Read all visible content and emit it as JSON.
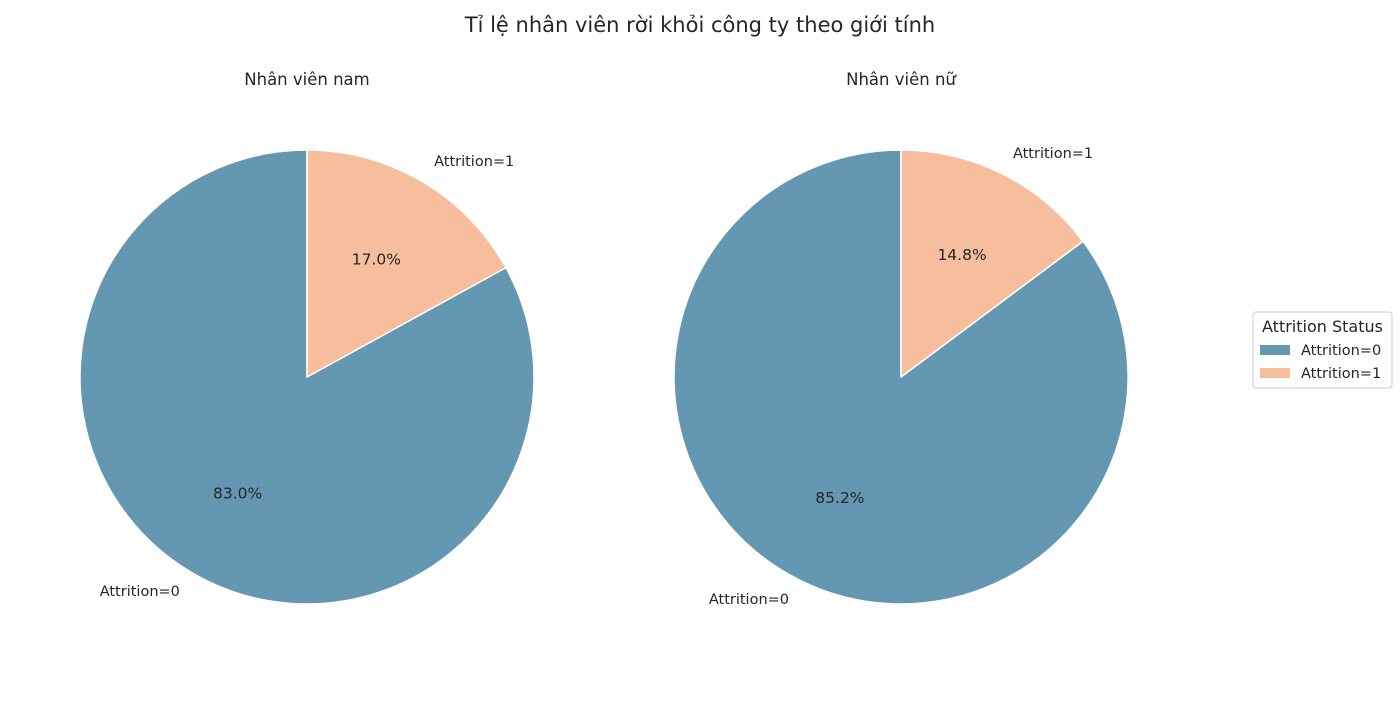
{
  "chart_data": {
    "type": "pie",
    "title": "Tỉ lệ nhân viên rời khỏi công ty theo giới tính",
    "legend": {
      "title": "Attrition Status",
      "placement": "right",
      "entries": [
        {
          "label": "Attrition=0",
          "color": "#6497b1"
        },
        {
          "label": "Attrition=1",
          "color": "#f7be9e"
        }
      ]
    },
    "charts": [
      {
        "title": "Nhân viên nam",
        "slices": [
          {
            "label": "Attrition=1",
            "value": 17.0,
            "pct_label": "17.0%",
            "color": "#f7be9e"
          },
          {
            "label": "Attrition=0",
            "value": 83.0,
            "pct_label": "83.0%",
            "color": "#6497b1"
          }
        ]
      },
      {
        "title": "Nhân viên nữ",
        "slices": [
          {
            "label": "Attrition=1",
            "value": 14.8,
            "pct_label": "14.8%",
            "color": "#f7be9e"
          },
          {
            "label": "Attrition=0",
            "value": 85.2,
            "pct_label": "85.2%",
            "color": "#6497b1"
          }
        ]
      }
    ]
  }
}
